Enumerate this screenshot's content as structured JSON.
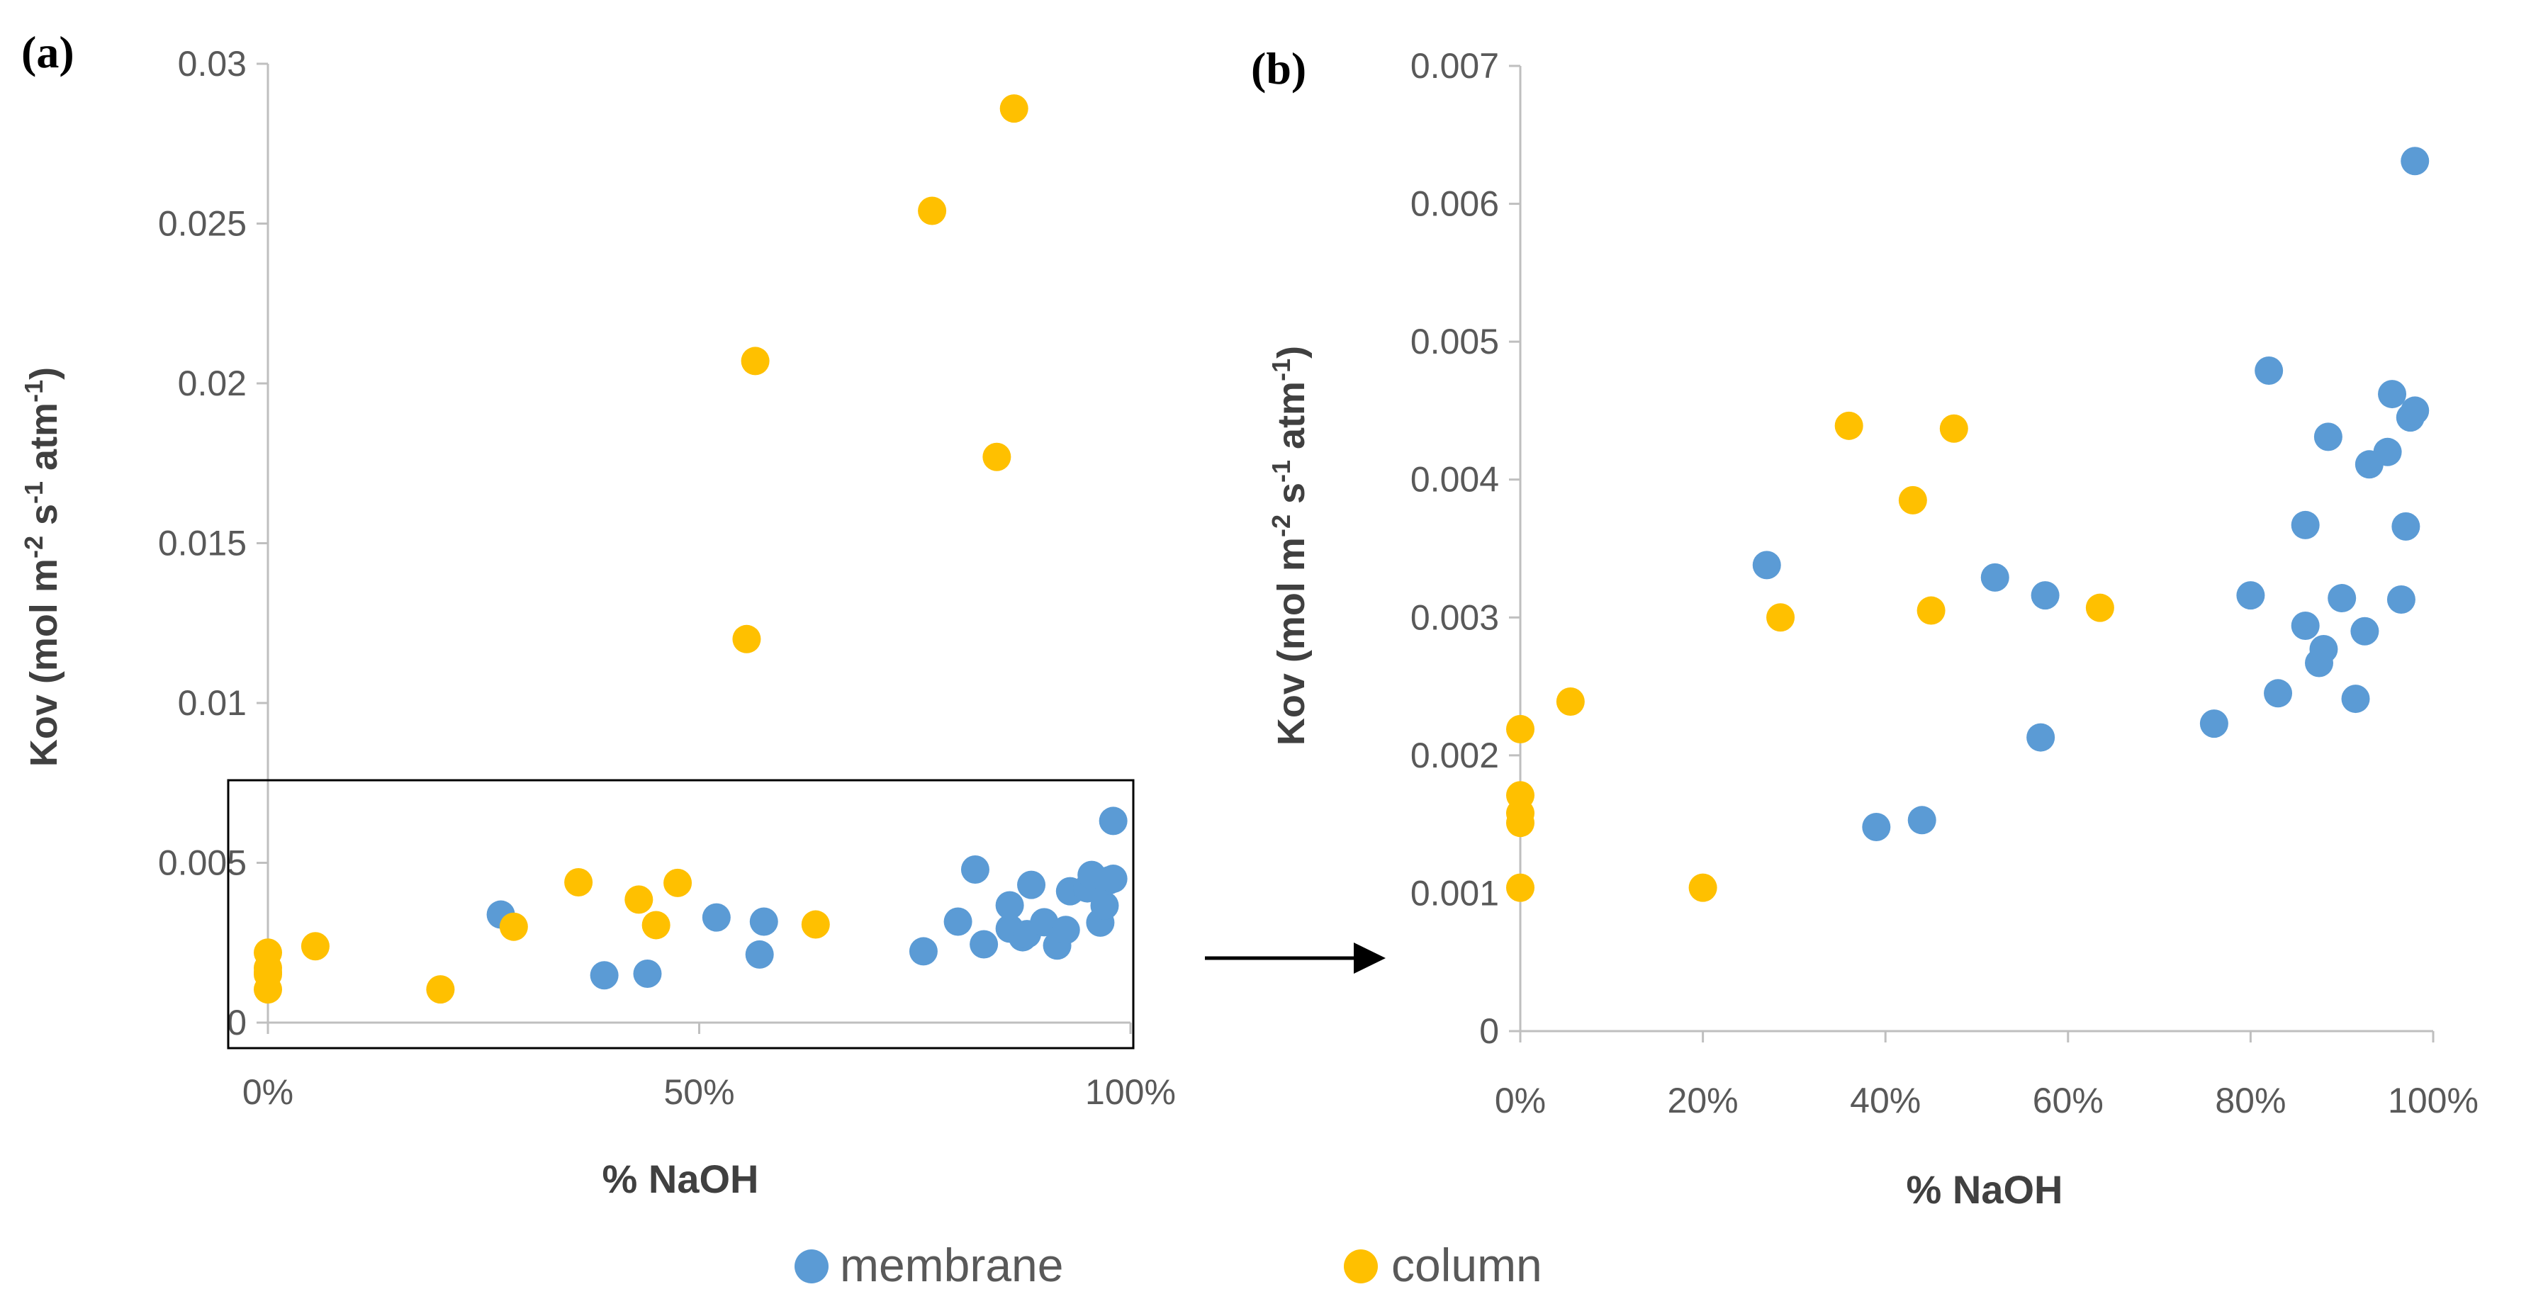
{
  "colors": {
    "membrane": "#5B9BD5",
    "column": "#FFC000",
    "axis": "#BFBFBF",
    "text": "#595959",
    "title": "#404040"
  },
  "legend": {
    "membrane_label": "membrane",
    "column_label": "column"
  },
  "chart_data": [
    {
      "panel": "(a)",
      "type": "scatter",
      "xlabel": "% NaOH",
      "ylabel": "Kov (mol m^-2 s^-1 atm^-1)",
      "xlim": [
        0,
        100
      ],
      "ylim": [
        0,
        0.03
      ],
      "xticks": [
        0,
        50,
        100
      ],
      "xtick_labels": [
        "0%",
        "50%",
        "100%"
      ],
      "yticks": [
        0,
        0.005,
        0.01,
        0.015,
        0.02,
        0.025,
        0.03
      ],
      "ytick_labels": [
        "0",
        "0.005",
        "0.01",
        "0.015",
        "0.02",
        "0.025",
        "0.03"
      ],
      "series": [
        {
          "name": "membrane",
          "points": [
            [
              27,
              0.00338
            ],
            [
              39,
              0.00148
            ],
            [
              44,
              0.00153
            ],
            [
              52,
              0.00329
            ],
            [
              57,
              0.00213
            ],
            [
              57.5,
              0.00316
            ],
            [
              76,
              0.00223
            ],
            [
              80,
              0.00316
            ],
            [
              82,
              0.00479
            ],
            [
              83,
              0.00245
            ],
            [
              86,
              0.00294
            ],
            [
              86,
              0.00367
            ],
            [
              87.5,
              0.00267
            ],
            [
              88,
              0.00277
            ],
            [
              88.5,
              0.00431
            ],
            [
              90,
              0.00314
            ],
            [
              91.5,
              0.00241
            ],
            [
              92.5,
              0.0029
            ],
            [
              93,
              0.00411
            ],
            [
              95,
              0.0042
            ],
            [
              95.5,
              0.00462
            ],
            [
              96.5,
              0.00313
            ],
            [
              97,
              0.00366
            ],
            [
              97.5,
              0.00445
            ],
            [
              98,
              0.0045
            ],
            [
              98,
              0.00631
            ]
          ]
        },
        {
          "name": "column",
          "points": [
            [
              0,
              0.00219
            ],
            [
              0,
              0.00171
            ],
            [
              0,
              0.00158
            ],
            [
              0,
              0.00151
            ],
            [
              0,
              0.00104
            ],
            [
              5.5,
              0.00239
            ],
            [
              20,
              0.00104
            ],
            [
              28.5,
              0.003
            ],
            [
              36,
              0.00439
            ],
            [
              43,
              0.00385
            ],
            [
              45,
              0.00305
            ],
            [
              47.5,
              0.00437
            ],
            [
              63.5,
              0.00307
            ],
            [
              55.5,
              0.012
            ],
            [
              56.5,
              0.0207
            ],
            [
              77,
              0.0254
            ],
            [
              84.5,
              0.0177
            ],
            [
              86.5,
              0.0286
            ]
          ]
        }
      ],
      "annotation": "inset box marks 0-0.007 region shown in (b)"
    },
    {
      "panel": "(b)",
      "type": "scatter",
      "xlabel": "% NaOH",
      "ylabel": "Kov (mol m^-2 s^-1 atm^-1)",
      "xlim": [
        0,
        100
      ],
      "ylim": [
        0,
        0.007
      ],
      "xticks": [
        0,
        20,
        40,
        60,
        80,
        100
      ],
      "xtick_labels": [
        "0%",
        "20%",
        "40%",
        "60%",
        "80%",
        "100%"
      ],
      "yticks": [
        0,
        0.001,
        0.002,
        0.003,
        0.004,
        0.005,
        0.006,
        0.007
      ],
      "ytick_labels": [
        "0",
        "0.001",
        "0.002",
        "0.003",
        "0.004",
        "0.005",
        "0.006",
        "0.007"
      ],
      "series": [
        {
          "name": "membrane",
          "points": [
            [
              27,
              0.00338
            ],
            [
              39,
              0.00148
            ],
            [
              44,
              0.00153
            ],
            [
              52,
              0.00329
            ],
            [
              57,
              0.00213
            ],
            [
              57.5,
              0.00316
            ],
            [
              76,
              0.00223
            ],
            [
              80,
              0.00316
            ],
            [
              82,
              0.00479
            ],
            [
              83,
              0.00245
            ],
            [
              86,
              0.00294
            ],
            [
              86,
              0.00367
            ],
            [
              87.5,
              0.00267
            ],
            [
              88,
              0.00277
            ],
            [
              88.5,
              0.00431
            ],
            [
              90,
              0.00314
            ],
            [
              91.5,
              0.00241
            ],
            [
              92.5,
              0.0029
            ],
            [
              93,
              0.00411
            ],
            [
              95,
              0.0042
            ],
            [
              95.5,
              0.00462
            ],
            [
              96.5,
              0.00313
            ],
            [
              97,
              0.00366
            ],
            [
              97.5,
              0.00445
            ],
            [
              98,
              0.0045
            ],
            [
              98,
              0.00631
            ]
          ]
        },
        {
          "name": "column",
          "points": [
            [
              0,
              0.00219
            ],
            [
              0,
              0.00171
            ],
            [
              0,
              0.00158
            ],
            [
              0,
              0.00151
            ],
            [
              0,
              0.00104
            ],
            [
              5.5,
              0.00239
            ],
            [
              20,
              0.00104
            ],
            [
              28.5,
              0.003
            ],
            [
              36,
              0.00439
            ],
            [
              43,
              0.00385
            ],
            [
              45,
              0.00305
            ],
            [
              47.5,
              0.00437
            ],
            [
              63.5,
              0.00307
            ]
          ]
        }
      ]
    }
  ]
}
